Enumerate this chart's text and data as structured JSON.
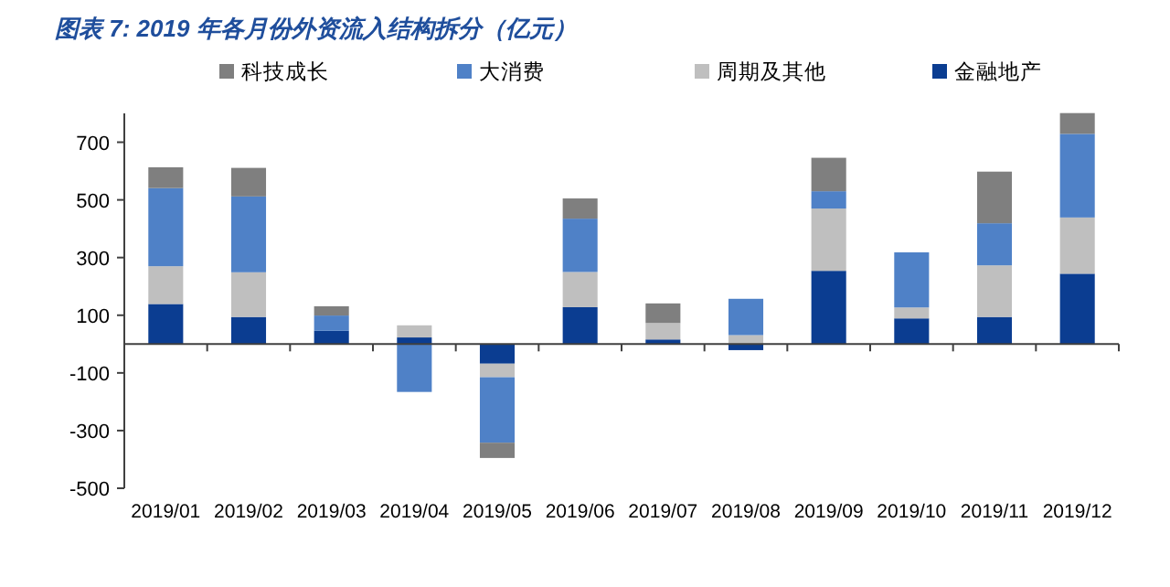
{
  "chart_data": {
    "type": "bar",
    "stacked": true,
    "title": "图表 7: 2019 年各月份外资流入结构拆分（亿元）",
    "categories": [
      "2019/01",
      "2019/02",
      "2019/03",
      "2019/04",
      "2019/05",
      "2019/06",
      "2019/07",
      "2019/08",
      "2019/09",
      "2019/10",
      "2019/11",
      "2019/12"
    ],
    "series": [
      {
        "name": "金融地产",
        "color": "#0b3d91",
        "values": [
          139,
          94,
          46,
          23,
          -68,
          128,
          16,
          -21,
          254,
          89,
          94,
          244
        ]
      },
      {
        "name": "周期及其他",
        "color": "#bfbfbf",
        "values": [
          131,
          155,
          null,
          42,
          -47,
          122,
          57,
          31,
          216,
          38,
          179,
          195
        ]
      },
      {
        "name": "大消费",
        "color": "#4f81c7",
        "values": [
          271,
          263,
          53,
          -166,
          -227,
          185,
          0,
          126,
          60,
          191,
          146,
          290
        ]
      },
      {
        "name": "科技成长",
        "color": "#7f7f7f",
        "values": [
          72,
          99,
          32,
          0,
          -53,
          70,
          68,
          0,
          116,
          0,
          179,
          72
        ]
      }
    ],
    "ylim": [
      -500,
      800
    ],
    "yticks": [
      -500,
      -300,
      -100,
      100,
      300,
      500,
      700
    ],
    "grid": false,
    "legend": "top"
  }
}
